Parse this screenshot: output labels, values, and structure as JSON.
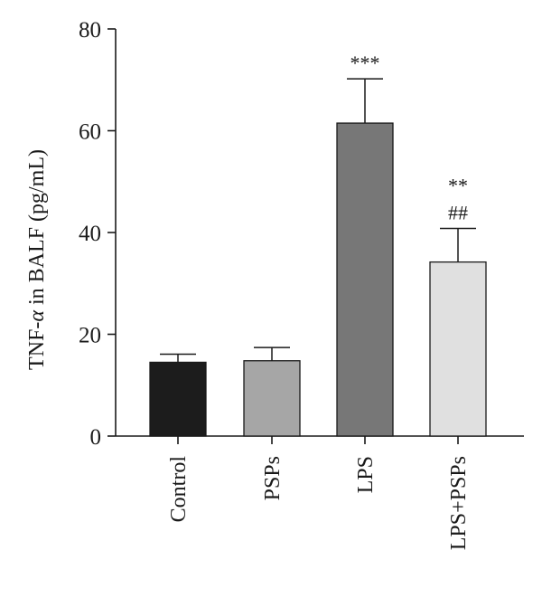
{
  "chart_data": {
    "type": "bar",
    "categories": [
      "Control",
      "PSPs",
      "LPS",
      "LPS+PSPs"
    ],
    "values": [
      14.5,
      14.8,
      61.5,
      34.2
    ],
    "errors": [
      1.6,
      2.6,
      8.7,
      6.6
    ],
    "colors": [
      "#1c1c1c",
      "#a6a6a6",
      "#777777",
      "#e0e0e0"
    ],
    "annotations": [
      [],
      [],
      [
        "***"
      ],
      [
        "##",
        "**"
      ]
    ],
    "ylabel_prefix": "TNF-",
    "ylabel_symbol": "α",
    "ylabel_suffix": " in BALF (pg/mL)",
    "xlabel": "",
    "title": "",
    "ylim": [
      0,
      80
    ],
    "yticks": [
      0,
      20,
      40,
      60,
      80
    ],
    "grid": false
  }
}
